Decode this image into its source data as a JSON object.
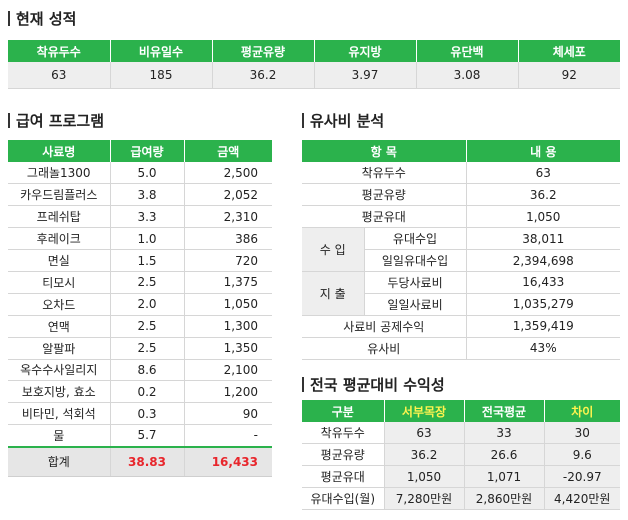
{
  "current": {
    "title": "현재 성적",
    "headers": [
      "착유두수",
      "비유일수",
      "평균유량",
      "유지방",
      "유단백",
      "체세포"
    ],
    "values": [
      "63",
      "185",
      "36.2",
      "3.97",
      "3.08",
      "92"
    ]
  },
  "program": {
    "title": "급여 프로그램",
    "headers": [
      "사료명",
      "급여량",
      "금액"
    ],
    "rows": [
      [
        "그래놀1300",
        "5.0",
        "2,500"
      ],
      [
        "카우드림플러스",
        "3.8",
        "2,052"
      ],
      [
        "프레쉬탑",
        "3.3",
        "2,310"
      ],
      [
        "후레이크",
        "1.0",
        "386"
      ],
      [
        "면실",
        "1.5",
        "720"
      ],
      [
        "티모시",
        "2.5",
        "1,375"
      ],
      [
        "오차드",
        "2.0",
        "1,050"
      ],
      [
        "연맥",
        "2.5",
        "1,300"
      ],
      [
        "알팔파",
        "2.5",
        "1,350"
      ],
      [
        "옥수수사일리지",
        "8.6",
        "2,100"
      ],
      [
        "보호지방, 효소",
        "0.2",
        "1,200"
      ],
      [
        "비타민, 석회석",
        "0.3",
        "90"
      ],
      [
        "물",
        "5.7",
        "-"
      ]
    ],
    "total": {
      "label": "합계",
      "amount": "38.83",
      "price": "16,433"
    }
  },
  "analysis": {
    "title": "유사비 분석",
    "headers": [
      "항 목",
      "내 용"
    ],
    "rows": [
      {
        "label": "착유두수",
        "value": "63"
      },
      {
        "label": "평균유량",
        "value": "36.2"
      },
      {
        "label": "평균유대",
        "value": "1,050"
      }
    ],
    "income_group": "수 입",
    "income_rows": [
      {
        "label": "유대수입",
        "value": "38,011"
      },
      {
        "label": "일일유대수입",
        "value": "2,394,698"
      }
    ],
    "expense_group": "지 출",
    "expense_rows": [
      {
        "label": "두당사료비",
        "value": "16,433"
      },
      {
        "label": "일일사료비",
        "value": "1,035,279"
      }
    ],
    "bottom_rows": [
      {
        "label": "사료비 공제수익",
        "value": "1,359,419"
      },
      {
        "label": "유사비",
        "value": "43%"
      }
    ]
  },
  "compare": {
    "title": "전국 평균대비 수익성",
    "headers": [
      "구분",
      "서부목장",
      "전국평균",
      "차이"
    ],
    "rows": [
      [
        "착유두수",
        "63",
        "33",
        "30"
      ],
      [
        "평균유량",
        "36.2",
        "26.6",
        "9.6"
      ],
      [
        "평균유대",
        "1,050",
        "1,071",
        "-20.97"
      ],
      [
        "유대수입(월)",
        "7,280만원",
        "2,860만원",
        "4,420만원"
      ]
    ]
  },
  "colors": {
    "header_green": "#2bb24c",
    "highlight_yellow": "#fff44f",
    "total_red": "#e8262c"
  }
}
